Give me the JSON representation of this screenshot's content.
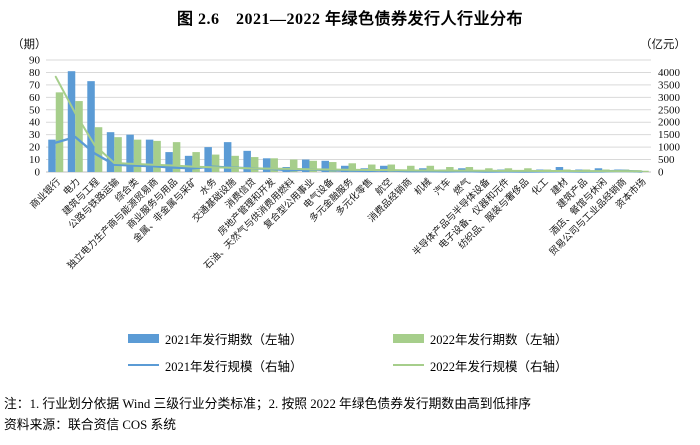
{
  "title": "图 2.6　2021—2022 年绿色债券发行人行业分布",
  "left_axis_unit": "（期）",
  "right_axis_unit": "（亿元）",
  "legend": {
    "bar_2021": "2021年发行期数（左轴）",
    "bar_2022": "2022年发行期数（左轴）",
    "line_2021": "2021年发行规模（右轴）",
    "line_2022": "2022年发行规模（右轴）"
  },
  "colors": {
    "blue": "#5B9BD5",
    "green": "#A6CE8B",
    "grid": "#D9D9D9",
    "axis": "#BFBFBF"
  },
  "notes": {
    "line1": "注：1. 行业划分依据 Wind 三级行业分类标准；2. 按照 2022 年绿色债券发行期数由高到低排序",
    "line2": "资料来源：联合资信 COS 系统"
  },
  "chart_data": {
    "type": "bar",
    "subtype": "bar+line combo, dual axis",
    "grid": true,
    "legend_position": "bottom",
    "categories": [
      "商业银行",
      "电力",
      "建筑与工程",
      "公路与铁路运输",
      "综合类",
      "独立电力生产商与能源贸易商",
      "商业服务与用品",
      "金属、非金属与采矿",
      "水务",
      "交通基础设施",
      "消费信贷",
      "房地产管理和开发",
      "石油、天然气与供消费用燃料",
      "复合型公用事业",
      "电气设备",
      "多元金融服务",
      "多元化零售",
      "航空",
      "消费品经销商",
      "机械",
      "汽车",
      "燃气",
      "半导体产品与半导体设备",
      "电子设备、仪器和元件",
      "纺织品、服装与奢侈品",
      "化工",
      "建材",
      "建筑产品",
      "酒店、餐馆与休闲",
      "贸易公司与工业品经销商",
      "资本市场"
    ],
    "series": [
      {
        "name": "2021年发行期数（左轴）",
        "type": "bar",
        "axis": "left",
        "color": "#5B9BD5",
        "values": [
          26,
          81,
          73,
          32,
          30,
          26,
          16,
          13,
          20,
          24,
          17,
          11,
          4,
          10,
          9,
          5,
          3,
          5,
          2,
          3,
          2,
          3,
          1,
          2,
          1,
          2,
          4,
          2,
          3,
          2,
          1
        ]
      },
      {
        "name": "2022年发行期数（左轴）",
        "type": "bar",
        "axis": "left",
        "color": "#A6CE8B",
        "values": [
          64,
          57,
          36,
          28,
          26,
          25,
          24,
          16,
          14,
          13,
          12,
          11,
          10,
          9,
          8,
          7,
          6,
          6,
          5,
          5,
          4,
          4,
          3,
          3,
          3,
          2,
          2,
          2,
          2,
          2,
          1
        ]
      },
      {
        "name": "2021年发行规模（右轴）",
        "type": "line",
        "axis": "right",
        "color": "#5B9BD5",
        "values": [
          1050,
          1250,
          660,
          260,
          230,
          210,
          160,
          130,
          190,
          160,
          130,
          110,
          60,
          90,
          70,
          50,
          40,
          60,
          30,
          30,
          20,
          30,
          15,
          20,
          15,
          20,
          25,
          15,
          20,
          40,
          15
        ]
      },
      {
        "name": "2022年发行规模（右轴）",
        "type": "line",
        "axis": "right",
        "color": "#A6CE8B",
        "values": [
          3400,
          2100,
          950,
          320,
          290,
          260,
          230,
          190,
          170,
          150,
          130,
          120,
          110,
          100,
          90,
          80,
          70,
          70,
          60,
          55,
          50,
          50,
          45,
          40,
          40,
          35,
          35,
          30,
          30,
          30,
          25
        ]
      }
    ],
    "left_axis": {
      "unit": "（期）",
      "min": 0,
      "max": 90,
      "ticks": [
        0,
        10,
        20,
        30,
        40,
        50,
        60,
        70,
        80,
        90
      ]
    },
    "right_axis": {
      "unit": "（亿元）",
      "min": 0,
      "max": 4000,
      "ticks": [
        0,
        500,
        1000,
        1500,
        2000,
        2500,
        3000,
        3500,
        4000
      ]
    }
  }
}
